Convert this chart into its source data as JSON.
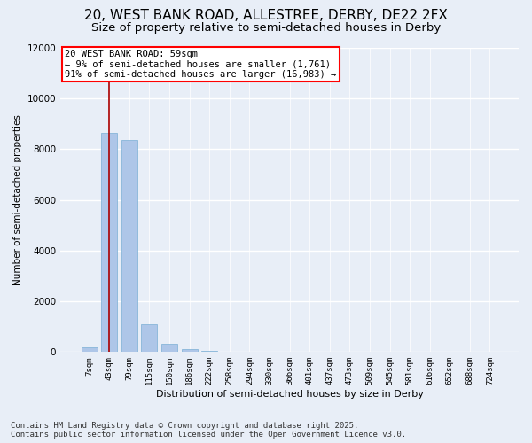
{
  "title_line1": "20, WEST BANK ROAD, ALLESTREE, DERBY, DE22 2FX",
  "title_line2": "Size of property relative to semi-detached houses in Derby",
  "xlabel": "Distribution of semi-detached houses by size in Derby",
  "ylabel": "Number of semi-detached properties",
  "categories": [
    "7sqm",
    "43sqm",
    "79sqm",
    "115sqm",
    "150sqm",
    "186sqm",
    "222sqm",
    "258sqm",
    "294sqm",
    "330sqm",
    "366sqm",
    "401sqm",
    "437sqm",
    "473sqm",
    "509sqm",
    "545sqm",
    "581sqm",
    "616sqm",
    "652sqm",
    "688sqm",
    "724sqm"
  ],
  "values": [
    200,
    8650,
    8350,
    1100,
    320,
    100,
    50,
    0,
    0,
    0,
    0,
    0,
    0,
    0,
    0,
    0,
    0,
    0,
    0,
    0,
    0
  ],
  "bar_color": "#aec6e8",
  "bar_edge_color": "#7aafd4",
  "vline_color": "#aa0000",
  "annotation_title": "20 WEST BANK ROAD: 59sqm",
  "annotation_line1": "← 9% of semi-detached houses are smaller (1,761)",
  "annotation_line2": "91% of semi-detached houses are larger (16,983) →",
  "annotation_box_color": "white",
  "annotation_box_edge_color": "red",
  "ylim": [
    0,
    12000
  ],
  "yticks": [
    0,
    2000,
    4000,
    6000,
    8000,
    10000,
    12000
  ],
  "background_color": "#e8eef7",
  "plot_background_color": "#e8eef7",
  "footer_line1": "Contains HM Land Registry data © Crown copyright and database right 2025.",
  "footer_line2": "Contains public sector information licensed under the Open Government Licence v3.0.",
  "grid_color": "white",
  "title_fontsize": 11,
  "subtitle_fontsize": 9.5,
  "annotation_fontsize": 7.5,
  "footer_fontsize": 6.5
}
